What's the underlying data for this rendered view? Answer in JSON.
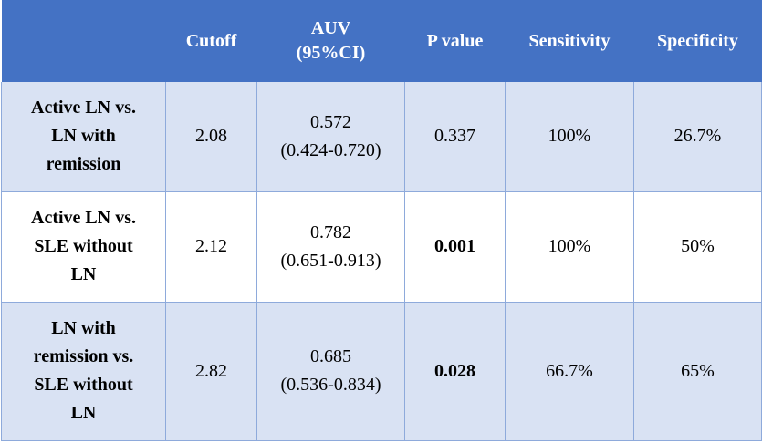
{
  "headers": [
    "",
    "Cutoff",
    "AUV\n(95%CI)",
    "P value",
    "Sensitivity",
    "Specificity"
  ],
  "header_auv_line1": "AUV",
  "header_auv_line2": "(95%CI)",
  "rows": [
    {
      "label_lines": [
        "Active LN vs.",
        "LN with",
        "remission"
      ],
      "cutoff": "2.08",
      "auv": "0.572",
      "ci": "(0.424-0.720)",
      "p_value": "0.337",
      "p_bold": false,
      "sensitivity": "100%",
      "specificity": "26.7%"
    },
    {
      "label_lines": [
        "Active LN vs.",
        "SLE without",
        "LN"
      ],
      "cutoff": "2.12",
      "auv": "0.782",
      "ci": "(0.651-0.913)",
      "p_value": "0.001",
      "p_bold": true,
      "sensitivity": "100%",
      "specificity": "50%"
    },
    {
      "label_lines": [
        "LN with",
        "remission vs.",
        "SLE without",
        "LN"
      ],
      "cutoff": "2.82",
      "auv": "0.685",
      "ci": "(0.536-0.834)",
      "p_value": "0.028",
      "p_bold": true,
      "sensitivity": "66.7%",
      "specificity": "65%"
    }
  ],
  "colors": {
    "header_bg": "#4472c4",
    "header_text": "#ffffff",
    "band_bg": "#d9e2f3",
    "border": "#8eaadb"
  }
}
